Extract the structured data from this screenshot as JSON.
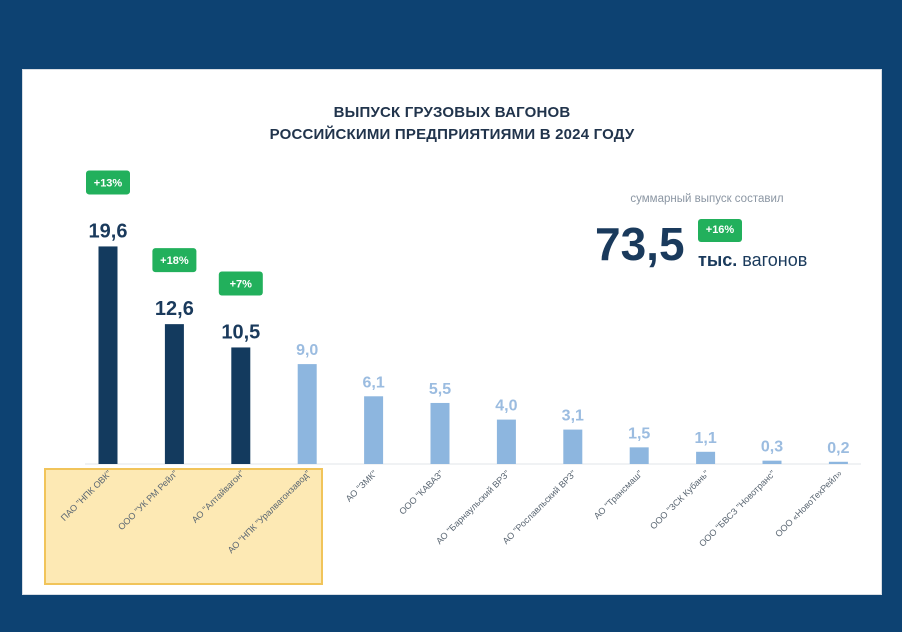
{
  "chart_data": {
    "type": "bar",
    "title": "ВЫПУСК ГРУЗОВЫХ ВАГОНОВ",
    "subtitle": "РОССИЙСКИМИ ПРЕДПРИЯТИЯМИ В 2024 ГОДУ",
    "categories": [
      "ПАО \"НПК ОВК\"",
      "ООО \"УК РМ Рейл\"",
      "АО \"Алтайвагон\"",
      "АО \"НПК \"Уралвагонзавод\"",
      "АО \"ЗМК\"",
      "ООО \"КАВАЗ\"",
      "АО \"Барнаульский ВРЗ\"",
      "АО \"Рославльский ВРЗ\"",
      "АО \"Трансмаш\"",
      "ООО \"ЗСК Кубань\"",
      "ООО \"БВСЗ \"Новотранс\"",
      "ООО «НовоТехРейл»"
    ],
    "values": [
      19.6,
      12.6,
      10.5,
      9.0,
      6.1,
      5.5,
      4.0,
      3.1,
      1.5,
      1.1,
      0.3,
      0.2
    ],
    "value_labels": [
      "19,6",
      "12,6",
      "10,5",
      "9,0",
      "6,1",
      "5,5",
      "4,0",
      "3,1",
      "1,5",
      "1,1",
      "0,3",
      "0,2"
    ],
    "growth_badges": [
      "+13%",
      "+18%",
      "+7%",
      null,
      null,
      null,
      null,
      null,
      null,
      null,
      null,
      null
    ],
    "highlighted_categories": [
      "ПАО \"НПК ОВК\"",
      "ООО \"УК РМ Рейл\"",
      "АО \"Алтайвагон\"",
      "АО \"НПК \"Уралвагонзавод\""
    ],
    "xlabel": "",
    "ylabel": "",
    "ylim": [
      0,
      20
    ],
    "grid": false,
    "legend": "none",
    "colors": {
      "top_bar": "#133a5e",
      "other_bar": "#8db6df",
      "top_label": "#1a3a5c",
      "other_label": "#9bbce0",
      "badge": "#22b05c",
      "highlight_fill": "#fde9b4",
      "highlight_border": "#f1c45a",
      "background": "#0d4272"
    }
  },
  "summary": {
    "label": "суммарный выпуск составил",
    "value": "73,5",
    "unit_bold": "тыс.",
    "unit_text": "вагонов",
    "badge": "+16%"
  }
}
